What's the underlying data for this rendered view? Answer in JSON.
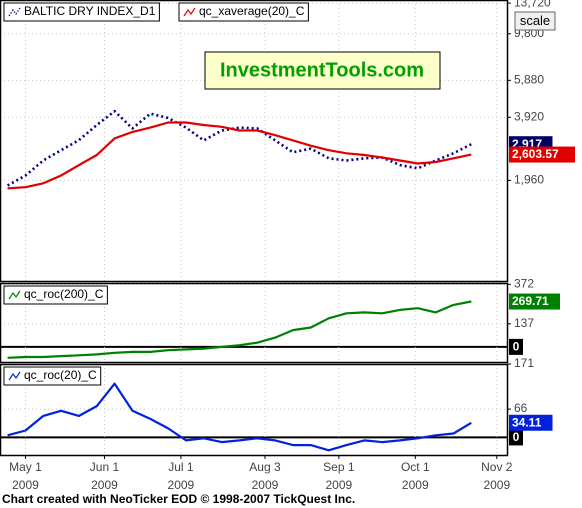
{
  "chart_data": [
    {
      "type": "line",
      "log_scale": true,
      "grid": true,
      "x": [
        "2009-04-24",
        "2009-05-01",
        "2009-05-08",
        "2009-05-15",
        "2009-05-22",
        "2009-05-29",
        "2009-06-05",
        "2009-06-12",
        "2009-06-19",
        "2009-06-26",
        "2009-07-03",
        "2009-07-10",
        "2009-07-17",
        "2009-07-24",
        "2009-07-31",
        "2009-08-07",
        "2009-08-14",
        "2009-08-21",
        "2009-08-28",
        "2009-09-04",
        "2009-09-11",
        "2009-09-18",
        "2009-09-25",
        "2009-10-02",
        "2009-10-09",
        "2009-10-16",
        "2009-10-23"
      ],
      "xlim": [
        "2009-04-21",
        "2009-11-06"
      ],
      "ylim": [
        650,
        14200
      ],
      "yticks": [
        {
          "value": 13720,
          "label": "13,720"
        },
        {
          "value": 9800,
          "label": "9,800"
        },
        {
          "value": 5880,
          "label": "5,880"
        },
        {
          "value": 3920,
          "label": "3,920"
        },
        {
          "value": 1960,
          "label": "1,960"
        }
      ],
      "series": [
        {
          "name": "BALTIC DRY INDEX_D1",
          "color": "#00008b",
          "style": "dotted",
          "values": [
            1853,
            2070,
            2440,
            2730,
            3050,
            3600,
            4190,
            3470,
            4080,
            3890,
            3500,
            3040,
            3390,
            3500,
            3470,
            3040,
            2670,
            2780,
            2500,
            2440,
            2500,
            2520,
            2320,
            2240,
            2440,
            2640,
            2917
          ],
          "value_labels": [
            null,
            null,
            null,
            null,
            null,
            null,
            null,
            null,
            null,
            null,
            null,
            null,
            null,
            null,
            null,
            null,
            null,
            null,
            null,
            null,
            null,
            null,
            null,
            null,
            null,
            null,
            "2,917"
          ],
          "label_color": "#000066"
        },
        {
          "name": "qc_xaverage(20)_C",
          "color": "#e00000",
          "style": "solid",
          "values": [
            1795,
            1820,
            1900,
            2070,
            2320,
            2590,
            3110,
            3340,
            3500,
            3700,
            3700,
            3600,
            3530,
            3390,
            3390,
            3220,
            3040,
            2870,
            2730,
            2640,
            2590,
            2520,
            2440,
            2360,
            2400,
            2500,
            2603.57
          ],
          "value_labels": [
            null,
            null,
            null,
            null,
            null,
            null,
            null,
            null,
            null,
            null,
            null,
            null,
            null,
            null,
            null,
            null,
            null,
            null,
            null,
            null,
            null,
            null,
            null,
            null,
            null,
            null,
            "2,603.57"
          ],
          "label_color": "#e00000"
        }
      ]
    },
    {
      "type": "line",
      "grid": true,
      "x": [
        "2009-04-24",
        "2009-05-01",
        "2009-05-08",
        "2009-05-15",
        "2009-05-22",
        "2009-05-29",
        "2009-06-05",
        "2009-06-12",
        "2009-06-19",
        "2009-06-26",
        "2009-07-03",
        "2009-07-10",
        "2009-07-17",
        "2009-07-24",
        "2009-07-31",
        "2009-08-07",
        "2009-08-14",
        "2009-08-21",
        "2009-08-28",
        "2009-09-04",
        "2009-09-11",
        "2009-09-18",
        "2009-09-25",
        "2009-10-02",
        "2009-10-09",
        "2009-10-16",
        "2009-10-23"
      ],
      "xlim": [
        "2009-04-21",
        "2009-11-06"
      ],
      "ylim": [
        -90,
        380
      ],
      "yticks": [
        372,
        137,
        0
      ],
      "series": [
        {
          "name": "qc_roc(200)_C",
          "color": "#008000",
          "style": "solid",
          "label_color": "#008000",
          "values": [
            -65,
            -60,
            -60,
            -55,
            -50,
            -45,
            -35,
            -30,
            -30,
            -20,
            -15,
            -10,
            0,
            10,
            25,
            55,
            100,
            115,
            170,
            200,
            205,
            200,
            220,
            230,
            205,
            250,
            269.71
          ]
        }
      ]
    },
    {
      "type": "line",
      "grid": true,
      "x": [
        "2009-04-24",
        "2009-05-01",
        "2009-05-08",
        "2009-05-15",
        "2009-05-22",
        "2009-05-29",
        "2009-06-05",
        "2009-06-12",
        "2009-06-19",
        "2009-06-26",
        "2009-07-03",
        "2009-07-10",
        "2009-07-17",
        "2009-07-24",
        "2009-07-31",
        "2009-08-07",
        "2009-08-14",
        "2009-08-21",
        "2009-08-28",
        "2009-09-04",
        "2009-09-11",
        "2009-09-18",
        "2009-09-25",
        "2009-10-02",
        "2009-10-09",
        "2009-10-16",
        "2009-10-23"
      ],
      "xlim": [
        "2009-04-21",
        "2009-11-06"
      ],
      "ylim": [
        -41,
        171
      ],
      "yticks": [
        171,
        66,
        0
      ],
      "xticks": [
        {
          "value": "2009-05-01",
          "label": "May 1",
          "sublabel": "2009"
        },
        {
          "value": "2009-06-01",
          "label": "Jun 1",
          "sublabel": "2009"
        },
        {
          "value": "2009-07-01",
          "label": "Jul 1",
          "sublabel": "2009"
        },
        {
          "value": "2009-08-03",
          "label": "Aug 3",
          "sublabel": "2009"
        },
        {
          "value": "2009-09-01",
          "label": "Sep 1",
          "sublabel": "2009"
        },
        {
          "value": "2009-10-01",
          "label": "Oct 1",
          "sublabel": "2009"
        },
        {
          "value": "2009-11-02",
          "label": "Nov 2",
          "sublabel": "2009"
        }
      ],
      "series": [
        {
          "name": "qc_roc(20)_C",
          "color": "#0022dd",
          "style": "solid",
          "label_color": "#0022dd",
          "values": [
            5,
            16,
            50,
            62,
            50,
            73,
            125,
            62,
            43,
            21,
            -7,
            -2,
            -11,
            -7,
            -2,
            -7,
            -18,
            -18,
            -30,
            -18,
            -7,
            -11,
            -7,
            -2,
            5,
            9,
            34.11
          ]
        }
      ]
    }
  ],
  "watermark": "InvestmentTools.com",
  "scale_button": "scale",
  "footer": "Chart created with NeoTicker EOD © 1998-2007 TickQuest Inc."
}
